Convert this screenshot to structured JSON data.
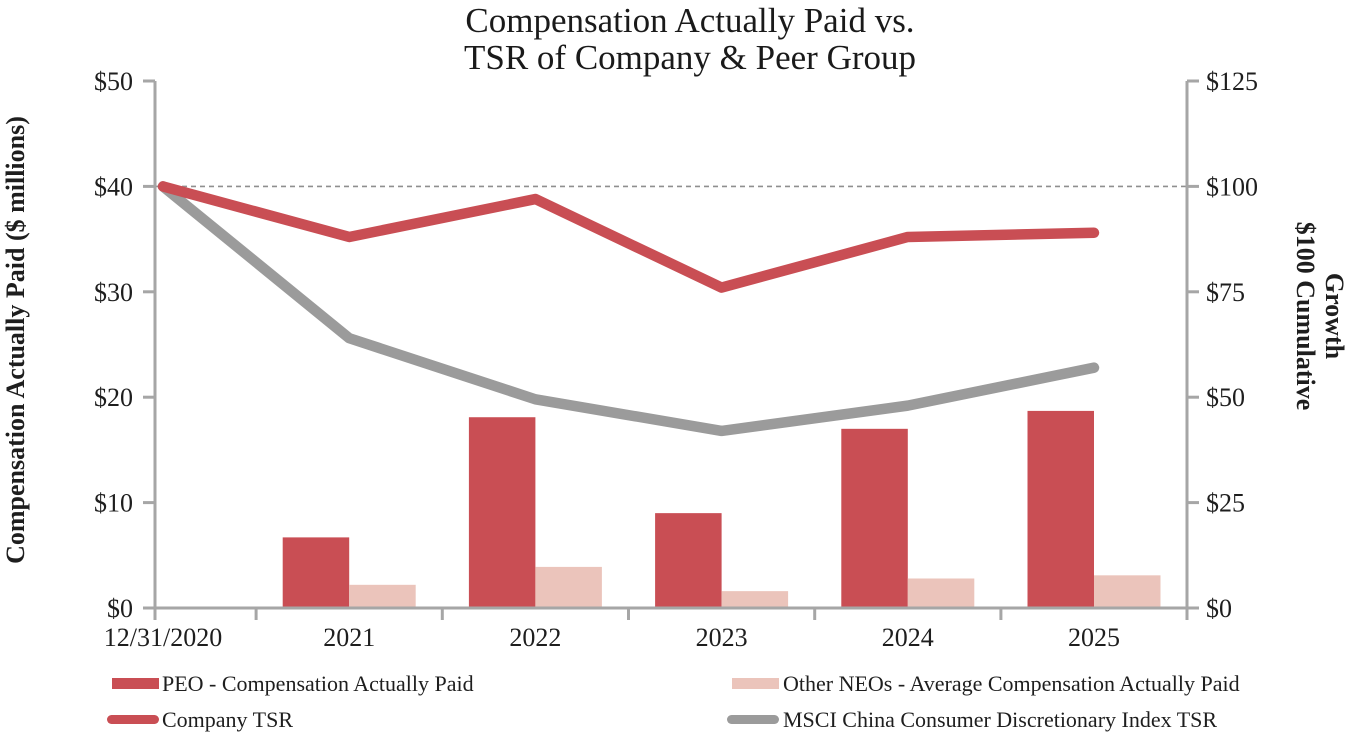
{
  "chart": {
    "title_line1": "Compensation Actually Paid vs.",
    "title_line2": "TSR of Company & Peer Group",
    "left_axis_title": "Compensation Actually Paid ($ millions)",
    "right_axis_title_line1": "$100 Cumulative",
    "right_axis_title_line2": "Growth"
  },
  "chart_data": {
    "type": "combo-bar-line",
    "title": "Compensation Actually Paid vs. TSR of Company & Peer Group",
    "categories": [
      "12/31/2020",
      "2021",
      "2022",
      "2023",
      "2024",
      "2025"
    ],
    "bar_series": [
      {
        "name": "PEO - Compensation Actually Paid",
        "axis": "left",
        "color_key": "peo_red",
        "values": [
          null,
          6.7,
          18.1,
          9.0,
          17.0,
          18.7
        ]
      },
      {
        "name": "Other NEOs - Average Compensation Actually Paid",
        "axis": "left",
        "color_key": "neo_pink",
        "values": [
          null,
          2.2,
          3.9,
          1.6,
          2.8,
          3.1
        ]
      }
    ],
    "line_series": [
      {
        "name": "Company TSR",
        "axis": "right",
        "color_key": "company_red",
        "values": [
          100,
          88,
          97,
          76,
          88,
          89
        ]
      },
      {
        "name": "MSCI China Consumer Discretionary Index TSR",
        "axis": "right",
        "color_key": "index_gray",
        "values": [
          100,
          64,
          49.5,
          42,
          48,
          57
        ]
      }
    ],
    "left_axis": {
      "label": "Compensation Actually Paid ($ millions)",
      "max": 50,
      "tick_values": [
        0,
        10,
        20,
        30,
        40,
        50
      ],
      "ticks": [
        "$0",
        "$10",
        "$20",
        "$30",
        "$40",
        "$50"
      ]
    },
    "right_axis": {
      "label": "$100 Cumulative Growth",
      "max": 125,
      "tick_values": [
        0,
        25,
        50,
        75,
        100,
        125
      ],
      "ticks": [
        "$0",
        "$25",
        "$50",
        "$75",
        "$100",
        "$125"
      ]
    },
    "gridline": {
      "axis": "right",
      "value": 100,
      "style": "dashed"
    },
    "legend_position": "bottom",
    "grid": "single dashed line at right-axis $100 / left-axis $40"
  },
  "legend": {
    "items": [
      {
        "label": "PEO - Compensation Actually Paid",
        "swatch": "bar",
        "color_key": "peo_red"
      },
      {
        "label": "Other NEOs - Average Compensation Actually Paid",
        "swatch": "bar",
        "color_key": "neo_pink"
      },
      {
        "label": "Company TSR",
        "swatch": "line",
        "color_key": "company_red"
      },
      {
        "label": "MSCI China Consumer Discretionary Index TSR",
        "swatch": "line",
        "color_key": "index_gray"
      }
    ]
  },
  "colors": {
    "peo_red": "#C94E54",
    "neo_pink": "#EBC4BB",
    "company_red": "#C94E54",
    "index_gray": "#9B9B9B",
    "axis": "#A6A6A6",
    "grid": "#8F8F8F",
    "text": "#1E1E1E"
  }
}
